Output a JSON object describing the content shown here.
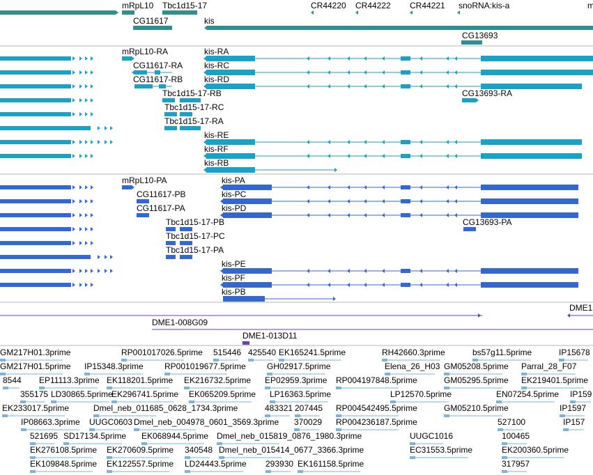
{
  "colors": {
    "gene": "#2f8f8f",
    "transcript": "#17a2c6",
    "protein": "#3367d1",
    "clone": "#6a3fae",
    "est": "#7ab4dd",
    "text": "#000000",
    "separator": "#b4b4b4"
  },
  "gene_labels": [
    "mRpL10",
    "Tbc1d15-17",
    "CG11617",
    "CR44220",
    "CR44222",
    "CR44221",
    "snoRNA:kis-a",
    "m",
    "kis",
    "CG13693"
  ],
  "transcript_labels": [
    "mRpL10-RA",
    "kis-RA",
    "CG11617-RA",
    "kis-RC",
    "CG11617-RB",
    "kis-RD",
    "Tbc1d15-17-RB",
    "CG13693-RA",
    "Tbc1d15-17-RC",
    "Tbc1d15-17-RA",
    "kis-RE",
    "kis-RF",
    "kis-RB"
  ],
  "protein_labels": [
    "mRpL10-PA",
    "kis-PA",
    "CG11617-PB",
    "kis-PC",
    "CG11617-PA",
    "kis-PD",
    "Tbc1d15-17-PB",
    "CG13693-PA",
    "Tbc1d15-17-PC",
    "Tbc1d15-17-PA",
    "kis-PE",
    "kis-PF",
    "kis-PB"
  ],
  "clone_labels": [
    "DME1",
    "DME1-008G09",
    "DME1-013D11"
  ],
  "est_labels": [
    "GM217H01.3prime",
    "RP001017026.5prime",
    "515446",
    "425540",
    "EK165241.5prime",
    "RH42660.3prime",
    "bs57g11.5prime",
    "IP15678",
    "GM217H01.5prime",
    "IP15348.3prime",
    "RP001019677.5prime",
    "GH02917.5prime",
    "Elena_26_H03",
    "GM05208.5prime",
    "Parral_28_F07",
    "8544",
    "EP11113.3prime",
    "EK118201.5prime",
    "EK216732.5prime",
    "EP02959.3prime",
    "RP004197848.5prime",
    "GM05295.5prime",
    "EK219401.5prime",
    "355175",
    "LD30865.5prime",
    "EK296741.5prime",
    "EK065209.5prime",
    "LP16363.5prime",
    "LP12570.5prime",
    "EN07254.5prime",
    "IP159",
    "EK233017.5prime",
    "Dmel_neb_011685_0628_1734.3prime",
    "483321",
    "207445",
    "RP004542495.5prime",
    "GM05210.5prime",
    "IP1597",
    "IP08663.3prime",
    "UUGC0603",
    "Dmel_neb_004978_0601_3569.3prime",
    "370029",
    "RP004236187.5prime",
    "527100",
    "IP157",
    "521695",
    "SD17134.5prime",
    "EK068944.5prime",
    "Dmel_neb_015819_0876_1980.3prime",
    "UUGC1016",
    "100465",
    "EK276108.5prime",
    "EK270609.5prime",
    "340548",
    "Dmel_neb_015414_0677_3366.3prime",
    "EC31553.5prime",
    "EK200360.5prime",
    "EK109848.5prime",
    "EK122557.5prime",
    "LD24443.5prime",
    "293930",
    "EK161158.5prime",
    "317957"
  ]
}
